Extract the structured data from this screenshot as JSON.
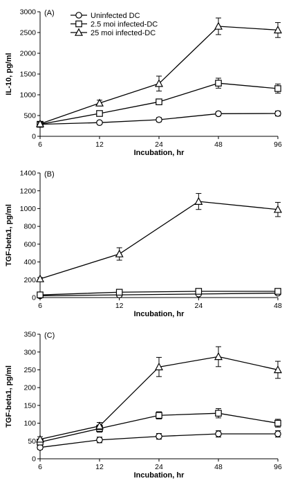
{
  "chart_data": [
    {
      "type": "line",
      "panel_label": "(A)",
      "xlabel": "Incubation, hr",
      "ylabel": "IL-10, pg/ml",
      "categories": [
        "6",
        "12",
        "24",
        "48",
        "96"
      ],
      "ylim": [
        0,
        3000
      ],
      "yticks": [
        "0",
        "500",
        "1000",
        "1500",
        "2000",
        "2500",
        "3000"
      ],
      "legend_position": "top-left",
      "series": [
        {
          "name": "Uninfected DC",
          "marker": "circle",
          "values": [
            290,
            330,
            400,
            545,
            550
          ],
          "errors": [
            40,
            40,
            50,
            50,
            60
          ]
        },
        {
          "name": "2.5 moi infected-DC",
          "marker": "square",
          "values": [
            290,
            550,
            830,
            1280,
            1150
          ],
          "errors": [
            40,
            60,
            70,
            120,
            110
          ]
        },
        {
          "name": "25 moi infected-DC",
          "marker": "triangle",
          "values": [
            300,
            800,
            1270,
            2650,
            2560
          ],
          "errors": [
            40,
            70,
            180,
            200,
            180
          ]
        }
      ]
    },
    {
      "type": "line",
      "panel_label": "(B)",
      "xlabel": "Incubation, hr",
      "ylabel": "TGF-beta1, pg/ml",
      "categories": [
        "6",
        "12",
        "24",
        "48"
      ],
      "ylim": [
        0,
        1400
      ],
      "yticks": [
        "0",
        "200",
        "400",
        "600",
        "800",
        "1000",
        "1200",
        "1400"
      ],
      "series": [
        {
          "marker": "circle",
          "values": [
            20,
            30,
            40,
            50
          ],
          "errors": [
            5,
            8,
            8,
            10
          ]
        },
        {
          "marker": "square",
          "values": [
            30,
            60,
            70,
            70
          ],
          "errors": [
            5,
            10,
            10,
            12
          ]
        },
        {
          "marker": "triangle",
          "values": [
            210,
            490,
            1080,
            990
          ],
          "errors": [
            15,
            70,
            90,
            80
          ]
        }
      ]
    },
    {
      "type": "line",
      "panel_label": "(C)",
      "xlabel": "Incubation, hr",
      "ylabel": "TGF-beta1, pg/ml",
      "categories": [
        "6",
        "12",
        "24",
        "48",
        "96"
      ],
      "ylim": [
        0,
        350
      ],
      "yticks": [
        "0",
        "50",
        "100",
        "150",
        "200",
        "250",
        "300",
        "350"
      ],
      "series": [
        {
          "marker": "circle",
          "values": [
            32,
            53,
            63,
            70,
            70
          ],
          "errors": [
            6,
            8,
            8,
            9,
            9
          ]
        },
        {
          "marker": "square",
          "values": [
            47,
            85,
            122,
            128,
            100
          ],
          "errors": [
            7,
            10,
            10,
            13,
            11
          ]
        },
        {
          "marker": "triangle",
          "values": [
            55,
            92,
            258,
            287,
            250
          ],
          "errors": [
            7,
            10,
            27,
            28,
            24
          ]
        }
      ]
    }
  ]
}
